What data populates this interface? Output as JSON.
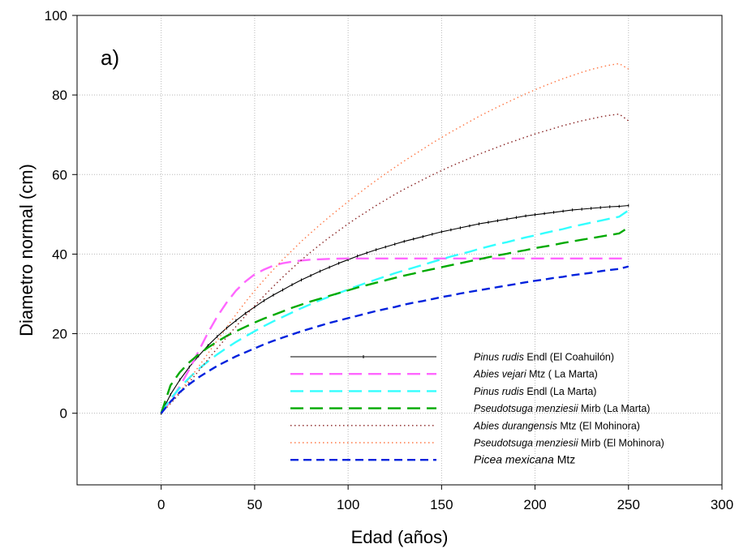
{
  "chart_data": {
    "type": "line",
    "panel_label": "a)",
    "xlabel": "Edad (años)",
    "ylabel": "Diametro normal (cm)",
    "xlim": [
      -45,
      300
    ],
    "ylim": [
      -18,
      100
    ],
    "xticks": [
      0,
      50,
      100,
      150,
      200,
      250,
      300
    ],
    "yticks": [
      0,
      20,
      40,
      60,
      80,
      100
    ],
    "grid": true,
    "legend_position": "bottom-right inside plot",
    "x": [
      0,
      5,
      10,
      15,
      20,
      25,
      30,
      35,
      40,
      45,
      50,
      55,
      60,
      65,
      70,
      75,
      80,
      85,
      90,
      95,
      100,
      105,
      110,
      115,
      120,
      125,
      130,
      135,
      140,
      145,
      150,
      155,
      160,
      165,
      170,
      175,
      180,
      185,
      190,
      195,
      200,
      205,
      210,
      215,
      220,
      225,
      230,
      235,
      240,
      245,
      250
    ],
    "series": [
      {
        "name_italic": "Pinus rudis",
        "name_rest": " Endl (El Coahuilón)",
        "color": "#000000",
        "style": "solid-markers",
        "values": [
          0,
          4.7,
          8.4,
          11.6,
          14.4,
          17.0,
          19.3,
          21.4,
          23.3,
          25.1,
          26.7,
          28.3,
          29.7,
          31.0,
          32.3,
          33.5,
          34.6,
          35.7,
          36.7,
          37.7,
          38.6,
          39.5,
          40.3,
          41.1,
          41.8,
          42.5,
          43.2,
          43.8,
          44.4,
          45.0,
          45.6,
          46.1,
          46.6,
          47.1,
          47.6,
          48.0,
          48.4,
          48.8,
          49.2,
          49.6,
          49.9,
          50.2,
          50.5,
          50.8,
          51.1,
          51.3,
          51.5,
          51.7,
          51.9,
          52.0,
          52.2
        ]
      },
      {
        "name_italic": "Abies vejari",
        "name_rest": " Mtz ( La Marta)",
        "color": "#ff66ff",
        "style": "long-dash",
        "values": [
          0,
          3.0,
          6.8,
          11.0,
          15.6,
          20.2,
          24.3,
          27.8,
          30.8,
          33.1,
          34.9,
          36.1,
          37.1,
          37.7,
          38.1,
          38.4,
          38.6,
          38.7,
          38.8,
          38.85,
          38.9,
          38.9,
          38.9,
          38.9,
          38.9,
          38.9,
          38.9,
          38.9,
          38.9,
          38.9,
          38.9,
          38.9,
          38.9,
          38.9,
          38.9,
          38.9,
          38.9,
          38.9,
          38.9,
          38.9,
          38.9,
          38.9,
          38.9,
          38.9,
          38.9,
          38.9,
          38.9,
          38.9,
          38.9,
          38.9,
          38.9
        ]
      },
      {
        "name_italic": "Pinus rudis",
        "name_rest": " Endl (La Marta)",
        "color": "#33ffff",
        "style": "long-dash",
        "values": [
          0,
          3.6,
          6.4,
          8.9,
          11.1,
          13.0,
          14.8,
          16.4,
          17.9,
          19.3,
          20.6,
          21.9,
          23.1,
          24.2,
          25.3,
          26.4,
          27.4,
          28.4,
          29.3,
          30.2,
          31.1,
          32.0,
          32.8,
          33.6,
          34.4,
          35.2,
          35.9,
          36.6,
          37.3,
          38.0,
          38.7,
          39.4,
          40.0,
          40.6,
          41.3,
          41.9,
          42.5,
          43.0,
          43.6,
          44.2,
          44.7,
          45.3,
          45.8,
          46.3,
          46.9,
          47.4,
          47.9,
          48.4,
          48.9,
          49.4,
          51.0
        ]
      },
      {
        "name_italic": "Pseudotsuga menziesii",
        "name_rest": " Mirb (La Marta)",
        "color": "#00aa00",
        "style": "long-dash",
        "values": [
          0,
          7.0,
          10.3,
          12.8,
          14.8,
          16.5,
          18.0,
          19.4,
          20.6,
          21.7,
          22.8,
          23.8,
          24.7,
          25.6,
          26.5,
          27.3,
          28.1,
          28.8,
          29.5,
          30.2,
          30.9,
          31.6,
          32.2,
          32.8,
          33.4,
          34.0,
          34.6,
          35.1,
          35.7,
          36.2,
          36.7,
          37.2,
          37.7,
          38.2,
          38.7,
          39.2,
          39.7,
          40.1,
          40.6,
          41.0,
          41.5,
          41.9,
          42.3,
          42.8,
          43.2,
          43.6,
          44.0,
          44.4,
          44.8,
          45.2,
          46.7
        ]
      },
      {
        "name_italic": "Abies durangensis",
        "name_rest": " Mtz (El Mohinora)",
        "color": "#882222",
        "style": "dotted",
        "values": [
          0,
          2.4,
          5.0,
          7.8,
          10.6,
          13.5,
          16.3,
          19.1,
          21.8,
          24.5,
          27.0,
          29.5,
          31.9,
          34.2,
          36.4,
          38.5,
          40.5,
          42.4,
          44.2,
          45.9,
          47.6,
          49.2,
          50.7,
          52.2,
          53.6,
          55.0,
          56.3,
          57.5,
          58.7,
          59.9,
          61.0,
          62.1,
          63.1,
          64.1,
          65.1,
          66.0,
          66.9,
          67.8,
          68.6,
          69.4,
          70.2,
          70.9,
          71.6,
          72.3,
          72.9,
          73.5,
          74.0,
          74.5,
          74.9,
          75.2,
          73.5
        ]
      },
      {
        "name_italic": "Pseudotsuga menziesii",
        "name_rest": " Mirb (El Mohinora)",
        "color": "#ff7744",
        "style": "dotted",
        "values": [
          0,
          2.6,
          5.4,
          8.5,
          11.7,
          15.0,
          18.3,
          21.6,
          24.8,
          27.9,
          30.8,
          33.5,
          36.1,
          38.6,
          40.9,
          43.2,
          45.3,
          47.4,
          49.4,
          51.3,
          53.2,
          55.0,
          56.8,
          58.5,
          60.2,
          61.8,
          63.4,
          64.9,
          66.4,
          67.9,
          69.3,
          70.7,
          72.0,
          73.3,
          74.6,
          75.8,
          77.0,
          78.1,
          79.2,
          80.3,
          81.3,
          82.3,
          83.2,
          84.1,
          84.9,
          85.7,
          86.4,
          87.0,
          87.5,
          87.9,
          86.5
        ]
      },
      {
        "name_italic": "Picea mexicana",
        "name_rest": " Mtz",
        "color": "#0022dd",
        "style": "short-dash",
        "values": [
          0,
          2.9,
          5.3,
          7.3,
          9.0,
          10.5,
          11.9,
          13.1,
          14.3,
          15.3,
          16.3,
          17.3,
          18.2,
          19.0,
          19.8,
          20.6,
          21.3,
          22.0,
          22.7,
          23.3,
          23.9,
          24.5,
          25.1,
          25.7,
          26.2,
          26.7,
          27.3,
          27.8,
          28.2,
          28.7,
          29.2,
          29.6,
          30.1,
          30.5,
          30.9,
          31.3,
          31.7,
          32.1,
          32.5,
          32.9,
          33.3,
          33.6,
          34.0,
          34.3,
          34.7,
          35.0,
          35.3,
          35.7,
          36.0,
          36.3,
          36.9
        ]
      }
    ]
  }
}
